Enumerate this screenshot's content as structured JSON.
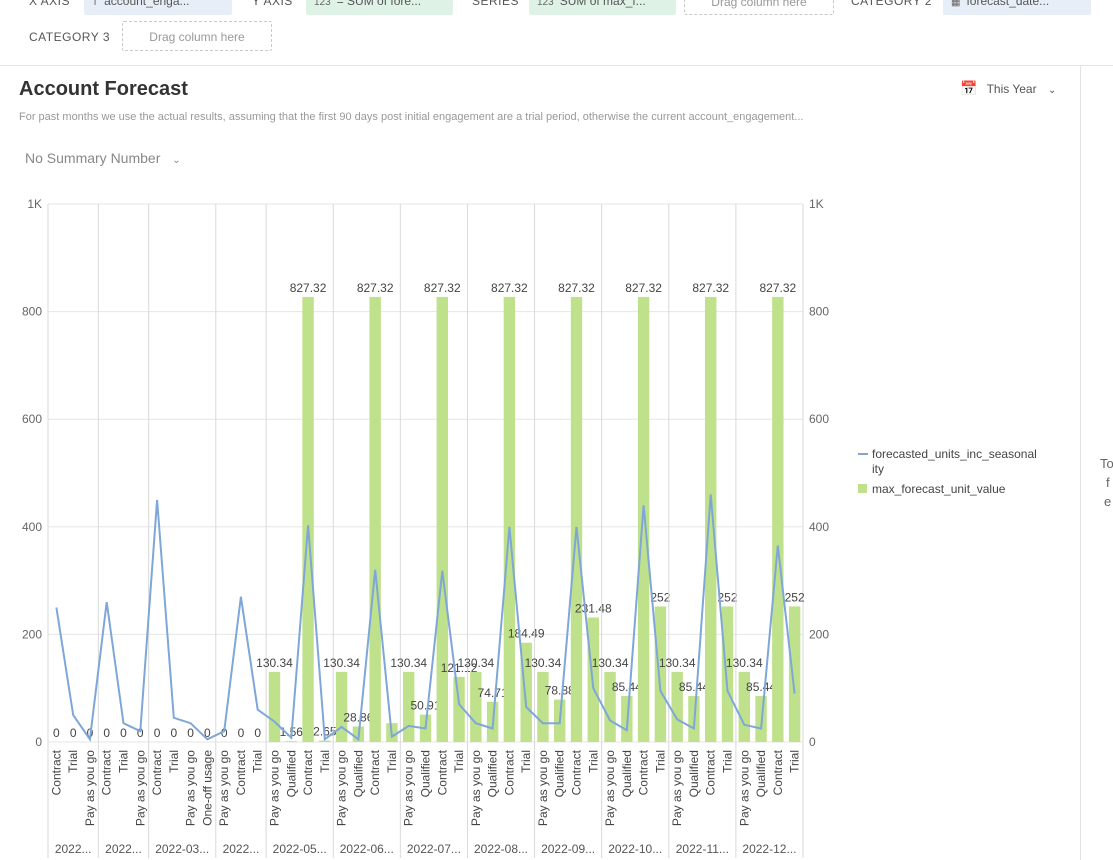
{
  "toolbar": {
    "x_axis_label": "X AXIS",
    "x_axis_value": "account_enga...",
    "y_axis_label": "Y AXIS",
    "y_axis_value": "= SUM of fore...",
    "series_label": "SERIES",
    "series_value": "SUM of max_f...",
    "drag_placeholder": "Drag column here",
    "category2_label": "CATEGORY 2",
    "category2_value": "forecast_date...",
    "category3_label": "CATEGORY 3",
    "type_icon_numeric": "123",
    "type_icon_text": "T",
    "date_icon": "calendar-icon"
  },
  "header": {
    "title": "Account Forecast",
    "subtitle": "For past months we use the actual results, assuming that the first 90 days post initial engagement are a trial period, otherwise the current account_engagement...",
    "summary": "No Summary Number",
    "date_range": "This Year"
  },
  "right_panel": {
    "lines": [
      "To",
      "f",
      "e"
    ]
  },
  "chart_data": {
    "type": "bar",
    "ylim": [
      0,
      1000
    ],
    "y_ticks": [
      "0",
      "200",
      "400",
      "600",
      "800",
      "1K"
    ],
    "colors": {
      "line": "#7ea7d8",
      "bar": "#bfe18b"
    },
    "legend": {
      "position": "right",
      "line_label": [
        "forecasted_units_inc_seasonal",
        "ity"
      ],
      "bar_label": "max_forecast_unit_value"
    },
    "groups": [
      {
        "label": "2022...",
        "categories": [
          "Contract",
          "Trial",
          "Pay as you go"
        ],
        "bars": [
          0,
          0,
          0
        ],
        "bar_labels": [
          "0",
          "0",
          "0"
        ],
        "line": [
          250,
          50,
          5
        ]
      },
      {
        "label": "2022...",
        "categories": [
          "Contract",
          "Trial",
          "Pay as you go"
        ],
        "bars": [
          0,
          0,
          0
        ],
        "bar_labels": [
          "0",
          "0",
          "0"
        ],
        "line": [
          260,
          35,
          20
        ]
      },
      {
        "label": "2022-03...",
        "categories": [
          "Contract",
          "Trial",
          "Pay as you go",
          "One-off usage"
        ],
        "bars": [
          0,
          0,
          0,
          0
        ],
        "bar_labels": [
          "0",
          "0",
          "0",
          "0"
        ],
        "line": [
          450,
          45,
          35,
          5
        ]
      },
      {
        "label": "2022...",
        "categories": [
          "Pay as you go",
          "Contract",
          "Trial"
        ],
        "bars": [
          0,
          0,
          0
        ],
        "bar_labels": [
          "0",
          "0",
          "0"
        ],
        "line": [
          20,
          270,
          60
        ]
      },
      {
        "label": "2022-05...",
        "categories": [
          "Pay as you go",
          "Qualified",
          "Contract",
          "Trial"
        ],
        "bars": [
          130.34,
          1.56,
          827.32,
          2.65
        ],
        "bar_labels": [
          "130.34",
          "1.56",
          "827.32",
          "2.65"
        ],
        "line": [
          38,
          8,
          403,
          5
        ]
      },
      {
        "label": "2022-06...",
        "categories": [
          "Pay as you go",
          "Qualified",
          "Contract",
          "Trial"
        ],
        "bars": [
          130.34,
          28.86,
          827.32,
          35
        ],
        "bar_labels": [
          "130.34",
          "28.86",
          "827.32",
          ""
        ],
        "line": [
          28,
          5,
          320,
          10
        ]
      },
      {
        "label": "2022-07...",
        "categories": [
          "Pay as you go",
          "Qualified",
          "Contract",
          "Trial"
        ],
        "bars": [
          130.34,
          50.91,
          827.32,
          121.12
        ],
        "bar_labels": [
          "130.34",
          "50.91",
          "827.32",
          "121.12"
        ],
        "line": [
          30,
          25,
          318,
          70
        ]
      },
      {
        "label": "2022-08...",
        "categories": [
          "Pay as you go",
          "Qualified",
          "Contract",
          "Trial"
        ],
        "bars": [
          130.34,
          74.71,
          827.32,
          184.49
        ],
        "bar_labels": [
          "130.34",
          "74.71",
          "827.32",
          "184.49"
        ],
        "line": [
          35,
          25,
          400,
          65
        ]
      },
      {
        "label": "2022-09...",
        "categories": [
          "Pay as you go",
          "Qualified",
          "Contract",
          "Trial"
        ],
        "bars": [
          130.34,
          78.88,
          827.32,
          231.48
        ],
        "bar_labels": [
          "130.34",
          "78.88",
          "827.32",
          "231.48"
        ],
        "line": [
          35,
          35,
          400,
          100
        ]
      },
      {
        "label": "2022-10...",
        "categories": [
          "Pay as you go",
          "Qualified",
          "Contract",
          "Trial"
        ],
        "bars": [
          130.34,
          85.44,
          827.32,
          252
        ],
        "bar_labels": [
          "130.34",
          "85.44",
          "827.32",
          "252"
        ],
        "line": [
          40,
          22,
          440,
          95
        ]
      },
      {
        "label": "2022-11...",
        "categories": [
          "Pay as you go",
          "Qualified",
          "Contract",
          "Trial"
        ],
        "bars": [
          130.34,
          85.44,
          827.32,
          252
        ],
        "bar_labels": [
          "130.34",
          "85.44",
          "827.32",
          "252"
        ],
        "line": [
          42,
          25,
          460,
          95
        ]
      },
      {
        "label": "2022-12...",
        "categories": [
          "Pay as you go",
          "Qualified",
          "Contract",
          "Trial"
        ],
        "bars": [
          130.34,
          85.44,
          827.32,
          252
        ],
        "bar_labels": [
          "130.34",
          "85.44",
          "827.32",
          "252"
        ],
        "line": [
          32,
          25,
          365,
          90
        ]
      }
    ]
  }
}
